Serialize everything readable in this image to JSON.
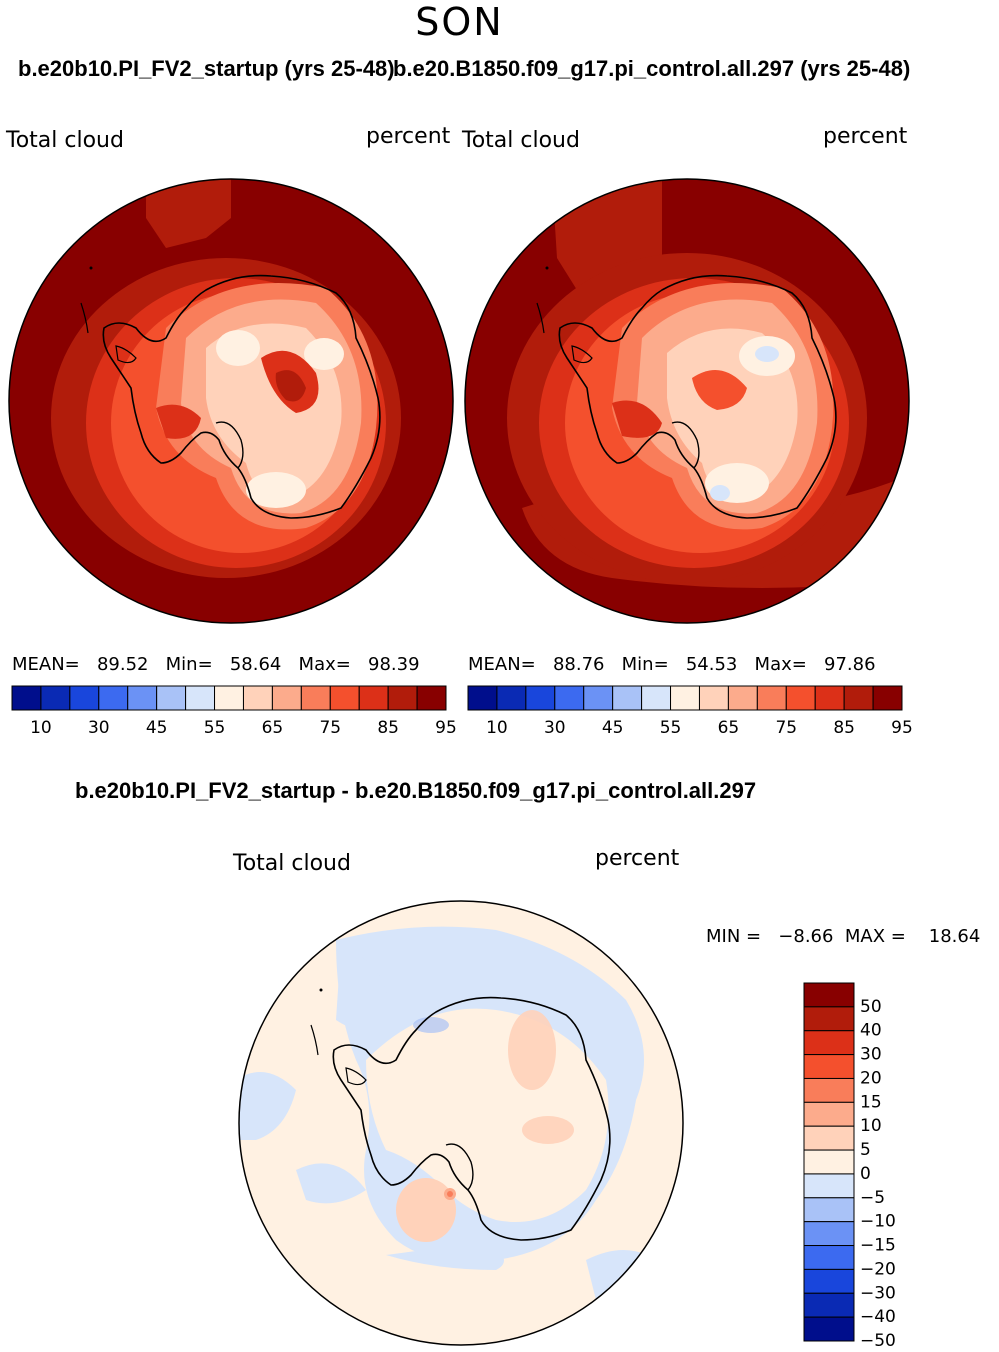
{
  "season": "SON",
  "panels": [
    {
      "title": "b.e20b10.PI_FV2_startup (yrs 25-48)",
      "variable": "Total cloud",
      "units": "percent",
      "stats": {
        "mean_label": "MEAN=",
        "mean": "89.52",
        "min_label": "Min=",
        "min": "58.64",
        "max_label": "Max=",
        "max": "98.39"
      }
    },
    {
      "title": "b.e20.B1850.f09_g17.pi_control.all.297 (yrs 25-48)",
      "variable": "Total cloud",
      "units": "percent",
      "stats": {
        "mean_label": "MEAN=",
        "mean": "88.76",
        "min_label": "Min=",
        "min": "54.53",
        "max_label": "Max=",
        "max": "97.86"
      }
    }
  ],
  "diff": {
    "title": "b.e20b10.PI_FV2_startup - b.e20.B1850.f09_g17.pi_control.all.297",
    "variable": "Total cloud",
    "units": "percent",
    "minmax": {
      "min_label": "MIN =",
      "min": "−8.66",
      "max_label": "MAX =",
      "max": "18.64"
    }
  },
  "colorbar_abs": {
    "colors": [
      "#000e8c",
      "#0a2ab4",
      "#1946dc",
      "#3c6af0",
      "#6b92f5",
      "#a9c2f7",
      "#d7e5fa",
      "#fff1e2",
      "#ffd2ba",
      "#fcab8c",
      "#f97d5a",
      "#f4502d",
      "#dc3018",
      "#b11c0b",
      "#880000"
    ],
    "tick_labels": [
      "10",
      "30",
      "45",
      "55",
      "65",
      "75",
      "85",
      "95"
    ]
  },
  "colorbar_diff": {
    "colors": [
      "#880000",
      "#b11c0b",
      "#dc3018",
      "#f4502d",
      "#f97d5a",
      "#fcab8c",
      "#ffd2ba",
      "#fff1e2",
      "#d7e5fa",
      "#a9c2f7",
      "#6b92f5",
      "#3c6af0",
      "#1946dc",
      "#0a2ab4",
      "#000e8c"
    ],
    "tick_labels": [
      "50",
      "40",
      "30",
      "20",
      "15",
      "10",
      "5",
      "0",
      "−5",
      "−10",
      "−15",
      "−20",
      "−30",
      "−40",
      "−50"
    ]
  }
}
